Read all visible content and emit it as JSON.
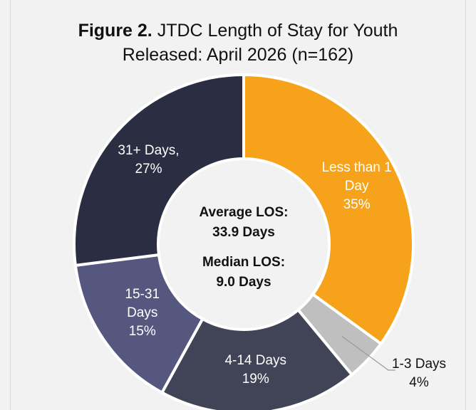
{
  "chart_data": {
    "type": "donut",
    "figure_label": "Figure 2.",
    "title": "JTDC Length of Stay for Youth Released: April 2026 (n=162)",
    "categories": [
      "Less than 1 Day",
      "1-3 Days",
      "4-14 Days",
      "15-31 Days",
      "31+ Days,"
    ],
    "values": [
      35,
      4,
      19,
      15,
      27
    ],
    "value_labels": [
      "35%",
      "4%",
      "19%",
      "15%",
      "27%"
    ],
    "colors": [
      "#f6a31b",
      "#bfbfbf",
      "#414356",
      "#55577f",
      "#2b2d42"
    ],
    "center_text": [
      "Average LOS:",
      "33.9 Days",
      "Median LOS:",
      "9.0 Days"
    ]
  }
}
